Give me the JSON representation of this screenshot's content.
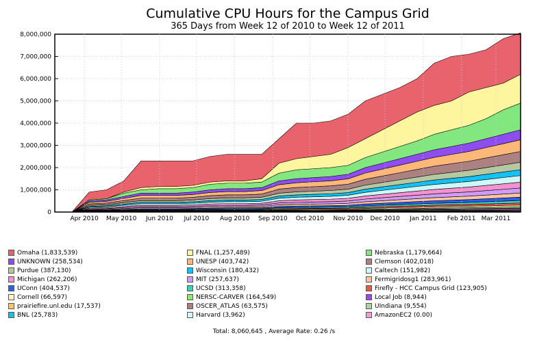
{
  "chart_data": {
    "type": "area",
    "title": "Cumulative CPU Hours for the Campus Grid",
    "subtitle": "365 Days from Week 12 of 2010 to Week 12 of 2011",
    "xlabel": "",
    "ylabel": "",
    "ylim": [
      0,
      8000000
    ],
    "yticks": [
      "0",
      "1,000,000",
      "2,000,000",
      "3,000,000",
      "4,000,000",
      "5,000,000",
      "6,000,000",
      "7,000,000",
      "8,000,000"
    ],
    "xticks": [
      "Apr 2010",
      "May 2010",
      "Jun 2010",
      "Jul 2010",
      "Aug 2010",
      "Sep 2010",
      "Oct 2010",
      "Nov 2010",
      "Dec 2010",
      "Jan 2011",
      "Feb 2011",
      "Mar 2011"
    ],
    "grid": true,
    "x": [
      "2010-03-22",
      "2010-04-05",
      "2010-04-19",
      "2010-05-03",
      "2010-05-17",
      "2010-05-31",
      "2010-06-14",
      "2010-06-28",
      "2010-07-12",
      "2010-07-26",
      "2010-08-09",
      "2010-08-23",
      "2010-09-06",
      "2010-09-20",
      "2010-10-04",
      "2010-10-18",
      "2010-11-01",
      "2010-11-15",
      "2010-11-29",
      "2010-12-13",
      "2010-12-27",
      "2011-01-10",
      "2011-01-24",
      "2011-02-07",
      "2011-02-21",
      "2011-03-07",
      "2011-03-21"
    ],
    "series": [
      {
        "name": "Omaha (1,833,539)",
        "color": "#e8636b"
      },
      {
        "name": "FNAL (1,257,489)",
        "color": "#fef59f"
      },
      {
        "name": "Nebraska (1,179,664)",
        "color": "#82e77e"
      },
      {
        "name": "UNKNOWN (258,534)",
        "color": "#8f4cf0"
      },
      {
        "name": "UNESP (403,742)",
        "color": "#fdb879"
      },
      {
        "name": "Clemson (402,018)",
        "color": "#ab8181"
      },
      {
        "name": "Purdue (387,130)",
        "color": "#b6c8a2"
      },
      {
        "name": "Wisconsin (180,432)",
        "color": "#13c1f2"
      },
      {
        "name": "Caltech (151,982)",
        "color": "#cff7f7"
      },
      {
        "name": "Michigan (262,206)",
        "color": "#f491cf"
      },
      {
        "name": "MIT (257,637)",
        "color": "#cf9cf7"
      },
      {
        "name": "Fermigridosg1 (283,961)",
        "color": "#fdc6a0"
      },
      {
        "name": "UConn (404,537)",
        "color": "#2e5ff2"
      },
      {
        "name": "UCSD (313,358)",
        "color": "#3fcfb8"
      },
      {
        "name": "Firefly - HCC Campus Grid (123,905)",
        "color": "#f2554a"
      },
      {
        "name": "Cornell (66,597)",
        "color": "#fff4c4"
      },
      {
        "name": "NERSC-CARVER (164,549)",
        "color": "#8fe86b"
      },
      {
        "name": "Local Job (8,944)",
        "color": "#9b47f5"
      },
      {
        "name": "prairiefire.unl.edu (17,537)",
        "color": "#fdc472"
      },
      {
        "name": "OSCER_ATLAS (63,575)",
        "color": "#a78380"
      },
      {
        "name": "UIndiana (9,554)",
        "color": "#b4cfa3"
      },
      {
        "name": "BNL (25,783)",
        "color": "#13c4e8"
      },
      {
        "name": "Harvard (3,962)",
        "color": "#cdf8f8"
      },
      {
        "name": "AmazonEC2 (0.00)",
        "color": "#f59cd2"
      }
    ],
    "cumulative_total": [
      0,
      900000,
      1000000,
      1400000,
      2300000,
      2300000,
      2300000,
      2300000,
      2500000,
      2600000,
      2600000,
      2600000,
      3300000,
      4000000,
      4000000,
      4100000,
      4400000,
      5000000,
      5300000,
      5600000,
      6000000,
      6700000,
      7000000,
      7100000,
      7300000,
      7800000,
      8060645
    ],
    "cumulative_top_layers": {
      "omaha_base": [
        0,
        550000,
        600000,
        900000,
        1100000,
        1150000,
        1150000,
        1200000,
        1350000,
        1400000,
        1400000,
        1500000,
        2200000,
        2400000,
        2500000,
        2600000,
        2900000,
        3300000,
        3700000,
        4100000,
        4500000,
        4800000,
        5000000,
        5400000,
        5600000,
        5800000,
        6200000
      ],
      "fnal_base": [
        0,
        550000,
        600000,
        850000,
        1000000,
        1050000,
        1050000,
        1100000,
        1250000,
        1300000,
        1300000,
        1350000,
        1750000,
        1900000,
        1950000,
        2000000,
        2100000,
        2450000,
        2700000,
        2950000,
        3200000,
        3500000,
        3700000,
        3900000,
        4200000,
        4600000,
        4900000
      ],
      "nebraska_base": [
        0,
        500000,
        550000,
        700000,
        850000,
        850000,
        850000,
        900000,
        1000000,
        1050000,
        1050000,
        1100000,
        1400000,
        1500000,
        1550000,
        1600000,
        1700000,
        2000000,
        2200000,
        2400000,
        2600000,
        2800000,
        2950000,
        3100000,
        3300000,
        3500000,
        3700000
      ]
    }
  },
  "footer": {
    "text": "Total: 8,060,645 , Average Rate: 0.26 /s"
  }
}
